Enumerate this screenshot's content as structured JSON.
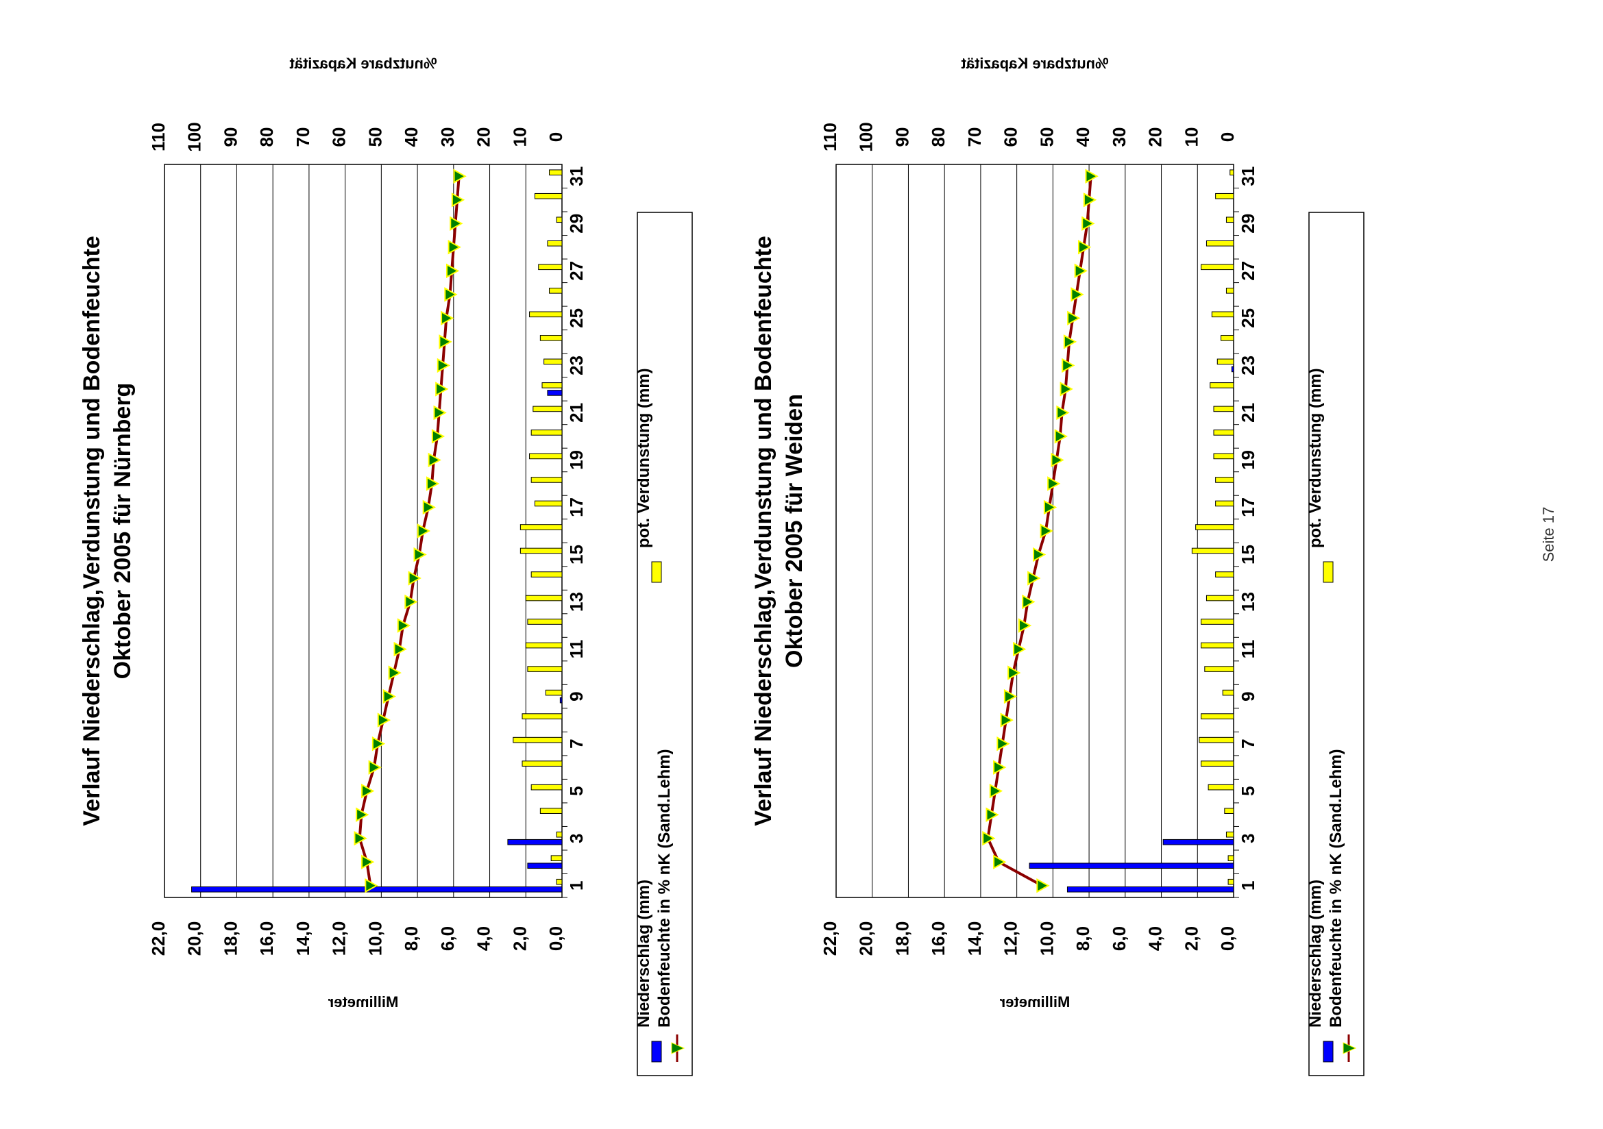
{
  "page": {
    "footer": "Seite 17"
  },
  "colors": {
    "niederschlag": "#0000ff",
    "verdunstung": "#ffff00",
    "bodenfeuchte": "#8b0000",
    "marker": "#008000"
  },
  "chart_data": [
    {
      "type": "bar",
      "title": "Verlauf Niederschlag,Verdunstung und Bodenfeuchte",
      "subtitle": "Oktober 2005 für Nürnberg",
      "xlabel": "",
      "ylabel": "Millimeter",
      "y2label": "%nutzbare Kapazität",
      "ylim": [
        0,
        22
      ],
      "y2lim": [
        0,
        110
      ],
      "yticks": [
        "0,0",
        "2,0",
        "4,0",
        "6,0",
        "8,0",
        "10,0",
        "12,0",
        "14,0",
        "16,0",
        "18,0",
        "20,0",
        "22,0"
      ],
      "y2ticks": [
        "0",
        "10",
        "20",
        "30",
        "40",
        "50",
        "60",
        "70",
        "80",
        "90",
        "100",
        "110"
      ],
      "xticks": [
        "1",
        "3",
        "5",
        "7",
        "9",
        "11",
        "13",
        "15",
        "17",
        "19",
        "21",
        "23",
        "25",
        "27",
        "29",
        "31"
      ],
      "x": [
        1,
        2,
        3,
        4,
        5,
        6,
        7,
        8,
        9,
        10,
        11,
        12,
        13,
        14,
        15,
        16,
        17,
        18,
        19,
        20,
        21,
        22,
        23,
        24,
        25,
        26,
        27,
        28,
        29,
        30,
        31
      ],
      "grid": true,
      "legend_position": "bottom",
      "series": [
        {
          "name": "Niederschlag (mm)",
          "kind": "bar",
          "values": [
            20.5,
            1.9,
            3.0,
            0,
            0,
            0,
            0,
            0,
            0.1,
            0,
            0,
            0,
            0,
            0,
            0,
            0,
            0,
            0,
            0,
            0,
            0,
            0.8,
            0,
            0,
            0,
            0,
            0,
            0,
            0,
            0,
            0
          ]
        },
        {
          "name": "pot. Verdunstung (mm)",
          "kind": "bar",
          "values": [
            0.3,
            0.6,
            0.3,
            1.2,
            1.7,
            2.2,
            2.7,
            2.2,
            0.9,
            1.9,
            2.0,
            1.9,
            2.0,
            1.7,
            2.3,
            2.3,
            1.5,
            1.7,
            1.8,
            1.7,
            1.6,
            1.1,
            1.0,
            1.2,
            1.8,
            0.7,
            1.3,
            0.8,
            0.3,
            1.5,
            0.7
          ]
        },
        {
          "name": "Bodenfeuchte in % nK (Sand.Lehm)",
          "kind": "line",
          "axis": "right",
          "values": [
            53,
            54,
            56,
            55.5,
            54,
            52,
            51,
            49.5,
            48,
            46.5,
            45,
            44,
            42,
            41,
            39.5,
            38.5,
            37,
            36,
            35.5,
            34.5,
            34,
            33.5,
            33,
            32.5,
            32,
            31,
            30.5,
            30,
            29.5,
            29,
            28.5
          ]
        }
      ],
      "legend": [
        "Niederschlag (mm)",
        "pot. Verdunstung (mm)",
        "Bodenfeuchte in % nK (Sand.Lehm)"
      ]
    },
    {
      "type": "bar",
      "title": "Verlauf Niederschlag,Verdunstung und Bodenfeuchte",
      "subtitle": "Oktober 2005 für Weiden",
      "xlabel": "",
      "ylabel": "Millimeter",
      "y2label": "%nutzbare Kapazität",
      "ylim": [
        0,
        22
      ],
      "y2lim": [
        0,
        110
      ],
      "yticks": [
        "0,0",
        "2,0",
        "4,0",
        "6,0",
        "8,0",
        "10,0",
        "12,0",
        "14,0",
        "16,0",
        "18,0",
        "20,0",
        "22,0"
      ],
      "y2ticks": [
        "0",
        "10",
        "20",
        "30",
        "40",
        "50",
        "60",
        "70",
        "80",
        "90",
        "100",
        "110"
      ],
      "xticks": [
        "1",
        "3",
        "5",
        "7",
        "9",
        "11",
        "13",
        "15",
        "17",
        "19",
        "21",
        "23",
        "25",
        "27",
        "29",
        "31"
      ],
      "x": [
        1,
        2,
        3,
        4,
        5,
        6,
        7,
        8,
        9,
        10,
        11,
        12,
        13,
        14,
        15,
        16,
        17,
        18,
        19,
        20,
        21,
        22,
        23,
        24,
        25,
        26,
        27,
        28,
        29,
        30,
        31
      ],
      "grid": true,
      "legend_position": "bottom",
      "series": [
        {
          "name": "Niederschlag (mm)",
          "kind": "bar",
          "values": [
            9.2,
            11.3,
            3.9,
            0,
            0,
            0,
            0,
            0,
            0,
            0,
            0,
            0,
            0,
            0,
            0,
            0,
            0,
            0,
            0,
            0,
            0,
            0,
            0.1,
            0,
            0,
            0,
            0,
            0,
            0,
            0,
            0
          ]
        },
        {
          "name": "pot. Verdunstung (mm)",
          "kind": "bar",
          "values": [
            0.3,
            0.3,
            0.4,
            0.5,
            1.4,
            1.8,
            1.9,
            1.8,
            0.6,
            1.6,
            1.8,
            1.8,
            1.5,
            1.0,
            2.3,
            2.1,
            1.0,
            1.0,
            1.1,
            1.1,
            1.1,
            1.3,
            0.9,
            0.7,
            1.2,
            0.4,
            1.8,
            1.5,
            0.4,
            1.0,
            0.2
          ]
        },
        {
          "name": "Bodenfeuchte in % nK (Sand.Lehm)",
          "kind": "line",
          "axis": "right",
          "values": [
            53,
            65,
            68,
            67,
            66,
            65,
            64,
            63,
            62,
            61,
            59.5,
            58,
            57,
            55.5,
            54,
            52,
            51,
            50,
            49,
            48,
            47.5,
            46.5,
            46,
            45.5,
            44.5,
            43.5,
            42.5,
            41.5,
            40.5,
            40,
            39.5
          ]
        }
      ],
      "legend": [
        "Niederschlag (mm)",
        "pot. Verdunstung (mm)",
        "Bodenfeuchte in % nK (Sand.Lehm)"
      ]
    }
  ]
}
